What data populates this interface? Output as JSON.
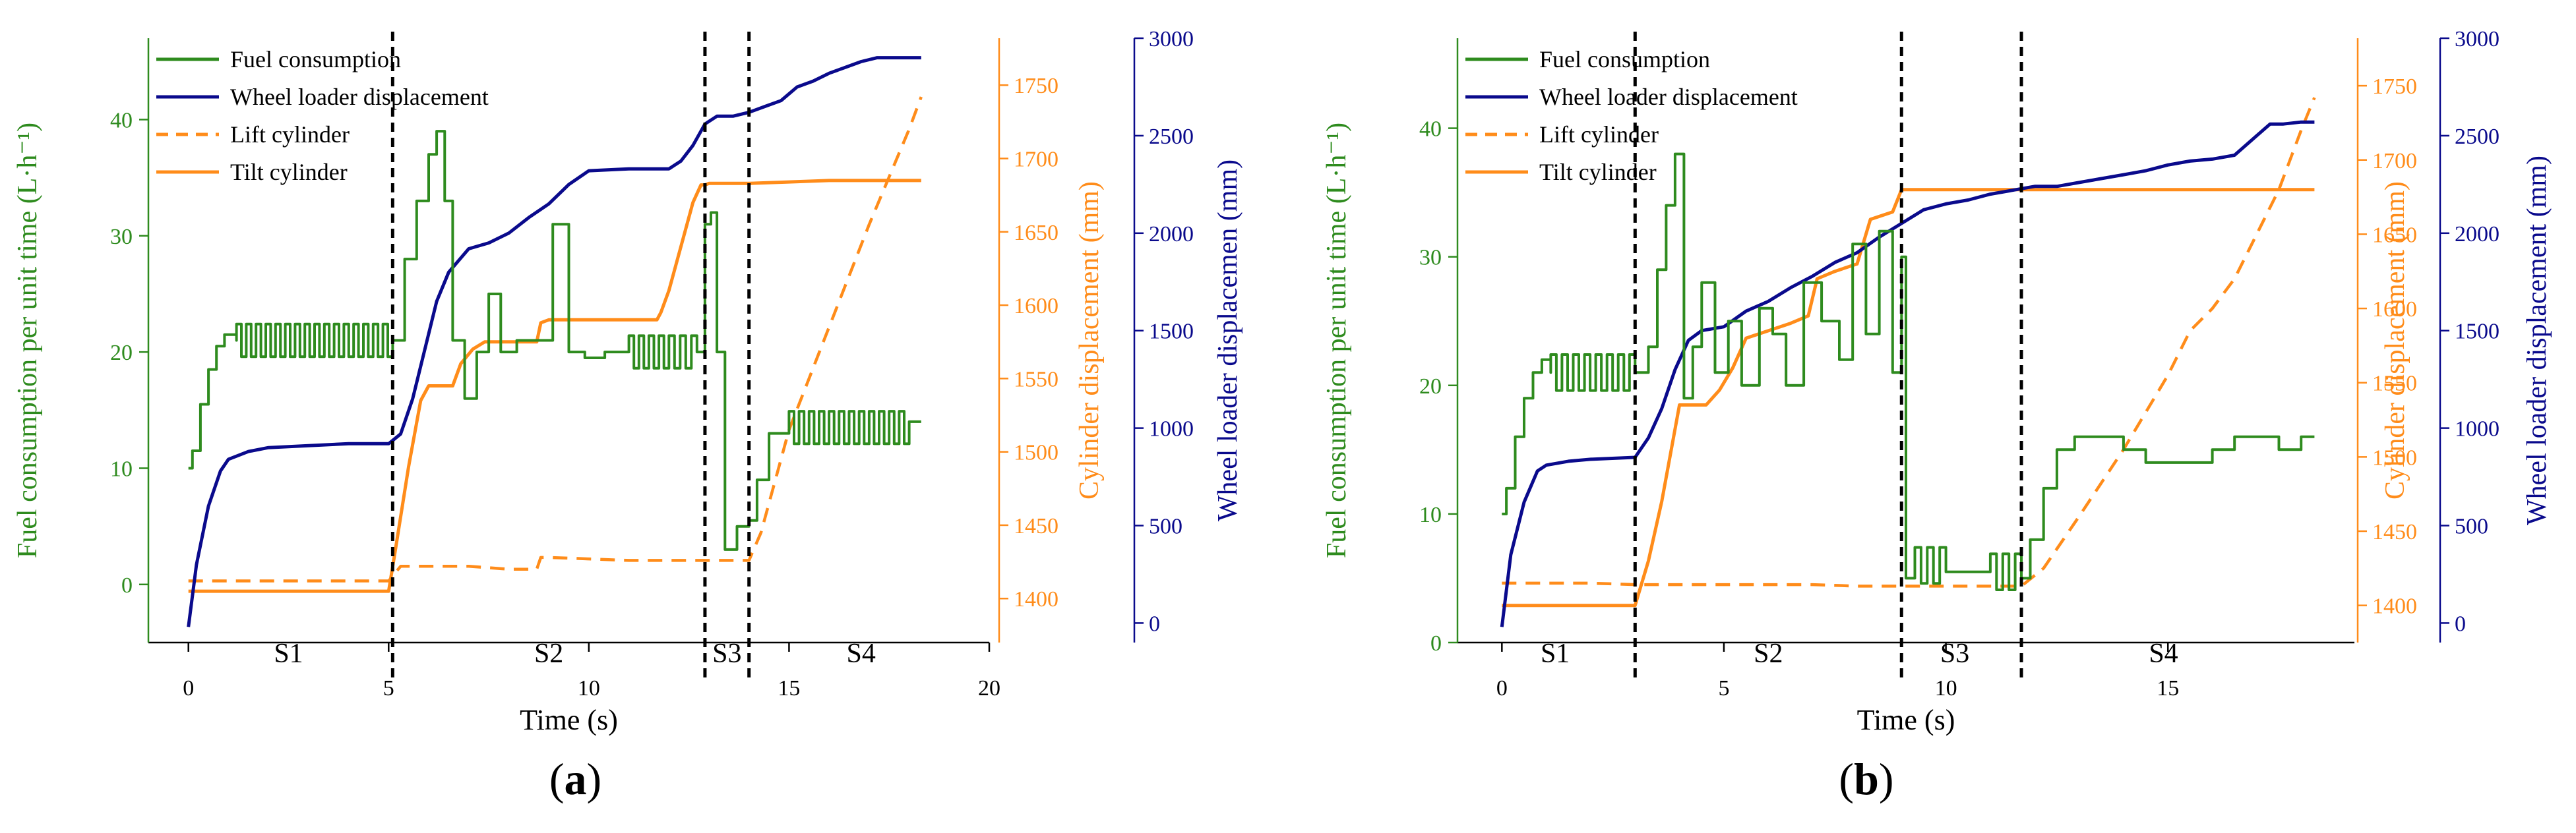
{
  "colors": {
    "fuel": "#2e8b1e",
    "displacement": "#0a0a8c",
    "cylinder": "#ff8c1a",
    "divider": "#000000",
    "text": "#000000"
  },
  "chart_data": [
    {
      "type": "line",
      "panel_label": "(a)",
      "panel_letter": "a",
      "xlabel": "Time (s)",
      "ylabel_left": "Fuel consumption per unit time (L·h⁻¹)",
      "ylabel_mid": "Cylinder displacement (mm)",
      "ylabel_right": "Wheel loader displacemen (mm)",
      "xlim": [
        -1,
        20
      ],
      "xticks": [
        0,
        5,
        10,
        15,
        20
      ],
      "ylim_left": [
        -5,
        47
      ],
      "yticks_left": [
        0,
        10,
        20,
        30,
        40
      ],
      "ylim_mid": [
        1370,
        1782
      ],
      "yticks_mid": [
        1400,
        1450,
        1500,
        1550,
        1600,
        1650,
        1700,
        1750
      ],
      "ylim_right": [
        -100,
        3000
      ],
      "yticks_right": [
        0,
        500,
        1000,
        1500,
        2000,
        2500,
        3000
      ],
      "legend": [
        "Fuel consumption",
        "Wheel loader displacement",
        "Lift cylinder",
        "Tilt cylinder"
      ],
      "dividers": [
        5.1,
        12.9,
        14.0
      ],
      "stages": [
        {
          "label": "S1",
          "x": 2.5
        },
        {
          "label": "S2",
          "x": 9.0
        },
        {
          "label": "S3",
          "x": 13.45
        },
        {
          "label": "S4",
          "x": 16.8
        }
      ],
      "series": [
        {
          "name": "Fuel consumption",
          "axis": "left",
          "style": "step-osc",
          "x": [
            0,
            0.1,
            0.3,
            0.5,
            0.7,
            0.9,
            1.2,
            5.1,
            5.4,
            5.7,
            6.0,
            6.2,
            6.4,
            6.6,
            6.9,
            7.2,
            7.5,
            7.8,
            8.2,
            8.6,
            9.1,
            9.5,
            9.9,
            10.4,
            11.0,
            12.0,
            12.7,
            12.9,
            13.05,
            13.2,
            13.4,
            13.7,
            14.0,
            14.2,
            14.5,
            15.0,
            16.0,
            17.0,
            18.0,
            18.3
          ],
          "y": [
            10,
            11.5,
            15.5,
            18.5,
            20.5,
            21.5,
            21,
            21,
            28,
            33,
            37,
            39,
            33,
            21,
            16,
            20,
            25,
            20,
            21,
            21,
            31,
            20,
            19.5,
            20,
            20,
            20,
            20,
            31,
            32,
            20,
            3,
            5,
            5.5,
            9,
            13,
            13.5,
            13.5,
            13.5,
            14,
            14
          ]
        },
        {
          "name": "Wheel loader displacement",
          "axis": "right",
          "style": "line",
          "x": [
            0,
            0.2,
            0.5,
            0.8,
            1.0,
            1.5,
            2.0,
            3.0,
            4.0,
            5.0,
            5.3,
            5.6,
            5.9,
            6.2,
            6.5,
            7.0,
            7.5,
            8.0,
            8.5,
            9.0,
            9.5,
            10.0,
            11.0,
            12.0,
            12.3,
            12.6,
            12.9,
            13.2,
            13.6,
            14.0,
            14.4,
            14.8,
            15.2,
            15.6,
            16.0,
            16.4,
            16.8,
            17.2,
            17.6,
            18.0,
            18.3
          ],
          "y": [
            -20,
            300,
            600,
            780,
            840,
            880,
            900,
            910,
            920,
            920,
            970,
            1150,
            1400,
            1650,
            1800,
            1920,
            1950,
            2000,
            2080,
            2150,
            2250,
            2320,
            2330,
            2330,
            2370,
            2450,
            2560,
            2600,
            2600,
            2620,
            2650,
            2680,
            2750,
            2780,
            2820,
            2850,
            2880,
            2900,
            2900,
            2900,
            2900
          ]
        },
        {
          "name": "Lift cylinder",
          "axis": "mid",
          "style": "dash",
          "x": [
            0,
            5.0,
            5.3,
            6.0,
            7.0,
            8.0,
            8.7,
            8.8,
            9.0,
            10.0,
            11.0,
            12.0,
            13.0,
            14.0,
            14.3,
            15.0,
            16.0,
            17.0,
            18.0,
            18.3
          ],
          "y": [
            1412,
            1412,
            1422,
            1422,
            1422,
            1420,
            1420,
            1428,
            1428,
            1427,
            1426,
            1426,
            1426,
            1426,
            1445,
            1515,
            1585,
            1655,
            1720,
            1742
          ]
        },
        {
          "name": "Tilt cylinder",
          "axis": "mid",
          "style": "line",
          "x": [
            0,
            5.0,
            5.15,
            5.5,
            5.8,
            6.0,
            6.3,
            6.6,
            6.8,
            7.1,
            7.4,
            7.6,
            8.7,
            8.8,
            9.0,
            10.0,
            11.0,
            11.7,
            11.8,
            12.0,
            12.3,
            12.6,
            12.8,
            12.9,
            13.0,
            14.0,
            15.0,
            16.0,
            17.0,
            18.0,
            18.3
          ],
          "y": [
            1405,
            1405,
            1430,
            1490,
            1535,
            1545,
            1545,
            1545,
            1560,
            1570,
            1575,
            1575,
            1575,
            1588,
            1590,
            1590,
            1590,
            1590,
            1595,
            1610,
            1640,
            1670,
            1682,
            1682,
            1683,
            1683,
            1684,
            1685,
            1685,
            1685,
            1685
          ]
        }
      ]
    },
    {
      "type": "line",
      "panel_label": "(b)",
      "panel_letter": "b",
      "xlabel": "Time (s)",
      "ylabel_left": "Fuel consumption per unit time (L·h⁻¹)",
      "ylabel_mid": "Cylinder displacement (mm)",
      "ylabel_right": "Wheel loader displacement (mm)",
      "xlim": [
        -1,
        19.2
      ],
      "xticks": [
        0,
        5,
        10,
        15
      ],
      "ylim_left": [
        0,
        47
      ],
      "yticks_left": [
        0,
        10,
        20,
        30,
        40
      ],
      "ylim_mid": [
        1375,
        1782
      ],
      "yticks_mid": [
        1400,
        1450,
        1500,
        1550,
        1600,
        1650,
        1700,
        1750
      ],
      "ylim_right": [
        -100,
        3000
      ],
      "yticks_right": [
        0,
        500,
        1000,
        1500,
        2000,
        2500,
        3000
      ],
      "legend": [
        "Fuel consumption",
        "Wheel loader displacement",
        "Lift cylinder",
        "Tilt cylinder"
      ],
      "dividers": [
        3.0,
        9.0,
        11.7
      ],
      "stages": [
        {
          "label": "S1",
          "x": 1.2
        },
        {
          "label": "S2",
          "x": 6.0
        },
        {
          "label": "S3",
          "x": 10.2
        },
        {
          "label": "S4",
          "x": 14.9
        }
      ],
      "series": [
        {
          "name": "Fuel consumption",
          "axis": "left",
          "style": "step-osc",
          "x": [
            0,
            0.1,
            0.3,
            0.5,
            0.7,
            0.9,
            1.1,
            3.0,
            3.3,
            3.5,
            3.7,
            3.9,
            4.1,
            4.3,
            4.5,
            4.8,
            5.1,
            5.4,
            5.8,
            6.1,
            6.4,
            6.8,
            7.2,
            7.6,
            7.9,
            8.2,
            8.5,
            8.8,
            9.0,
            9.1,
            9.3,
            10.0,
            10.5,
            11.0,
            11.7,
            11.9,
            12.2,
            12.5,
            12.9,
            13.3,
            13.7,
            14.0,
            14.5,
            15.0,
            15.5,
            16.0,
            16.5,
            17.0,
            17.5,
            18.0,
            18.3
          ],
          "y": [
            10,
            12,
            16,
            19,
            21,
            22,
            21,
            21,
            23,
            29,
            34,
            38,
            19,
            23,
            28,
            21,
            25,
            20,
            26,
            24,
            20,
            28,
            25,
            22,
            31,
            24,
            32,
            21,
            30,
            5,
            6,
            5.5,
            5.5,
            5.5,
            5,
            8,
            12,
            15,
            16,
            16,
            16,
            15,
            14,
            14,
            14,
            15,
            16,
            16,
            15,
            16,
            16
          ]
        },
        {
          "name": "Wheel loader displacement",
          "axis": "right",
          "style": "line",
          "x": [
            0,
            0.2,
            0.5,
            0.8,
            1.0,
            1.5,
            2.0,
            3.0,
            3.3,
            3.6,
            3.9,
            4.2,
            4.5,
            5.0,
            5.5,
            6.0,
            6.5,
            7.0,
            7.5,
            8.0,
            8.5,
            9.0,
            9.5,
            10.0,
            10.5,
            11.0,
            11.5,
            12.0,
            12.5,
            13.0,
            13.5,
            14.0,
            14.5,
            15.0,
            15.5,
            16.0,
            16.5,
            17.0,
            17.3,
            17.6,
            18.0,
            18.3
          ],
          "y": [
            -20,
            350,
            620,
            780,
            810,
            830,
            840,
            850,
            950,
            1100,
            1300,
            1450,
            1500,
            1520,
            1600,
            1650,
            1720,
            1780,
            1850,
            1900,
            1980,
            2050,
            2120,
            2150,
            2170,
            2200,
            2220,
            2240,
            2240,
            2260,
            2280,
            2300,
            2320,
            2350,
            2370,
            2380,
            2400,
            2500,
            2560,
            2560,
            2570,
            2570
          ]
        },
        {
          "name": "Lift cylinder",
          "axis": "mid",
          "style": "dash",
          "x": [
            0,
            1.0,
            2.0,
            3.0,
            4.0,
            5.0,
            6.0,
            7.0,
            8.0,
            9.0,
            10.0,
            11.0,
            11.7,
            12.2,
            13.0,
            14.0,
            15.0,
            15.5,
            16.0,
            16.5,
            17.0,
            17.5,
            18.0,
            18.3
          ],
          "y": [
            1415,
            1415,
            1415,
            1414,
            1414,
            1414,
            1414,
            1414,
            1413,
            1413,
            1413,
            1413,
            1413,
            1425,
            1460,
            1505,
            1555,
            1585,
            1600,
            1620,
            1650,
            1680,
            1720,
            1742
          ]
        },
        {
          "name": "Tilt cylinder",
          "axis": "mid",
          "style": "line",
          "x": [
            0,
            3.0,
            3.3,
            3.6,
            4.0,
            4.3,
            4.6,
            4.9,
            5.2,
            5.5,
            6.0,
            6.5,
            6.9,
            7.1,
            7.5,
            8.0,
            8.3,
            8.8,
            9.0,
            9.5,
            10.0,
            11.0,
            12.0,
            13.0,
            14.0,
            15.0,
            16.0,
            17.0,
            18.0,
            18.3
          ],
          "y": [
            1400,
            1400,
            1430,
            1470,
            1535,
            1535,
            1535,
            1545,
            1560,
            1580,
            1585,
            1590,
            1595,
            1620,
            1625,
            1630,
            1660,
            1665,
            1680,
            1680,
            1680,
            1680,
            1680,
            1680,
            1680,
            1680,
            1680,
            1680,
            1680,
            1680
          ]
        }
      ]
    }
  ]
}
